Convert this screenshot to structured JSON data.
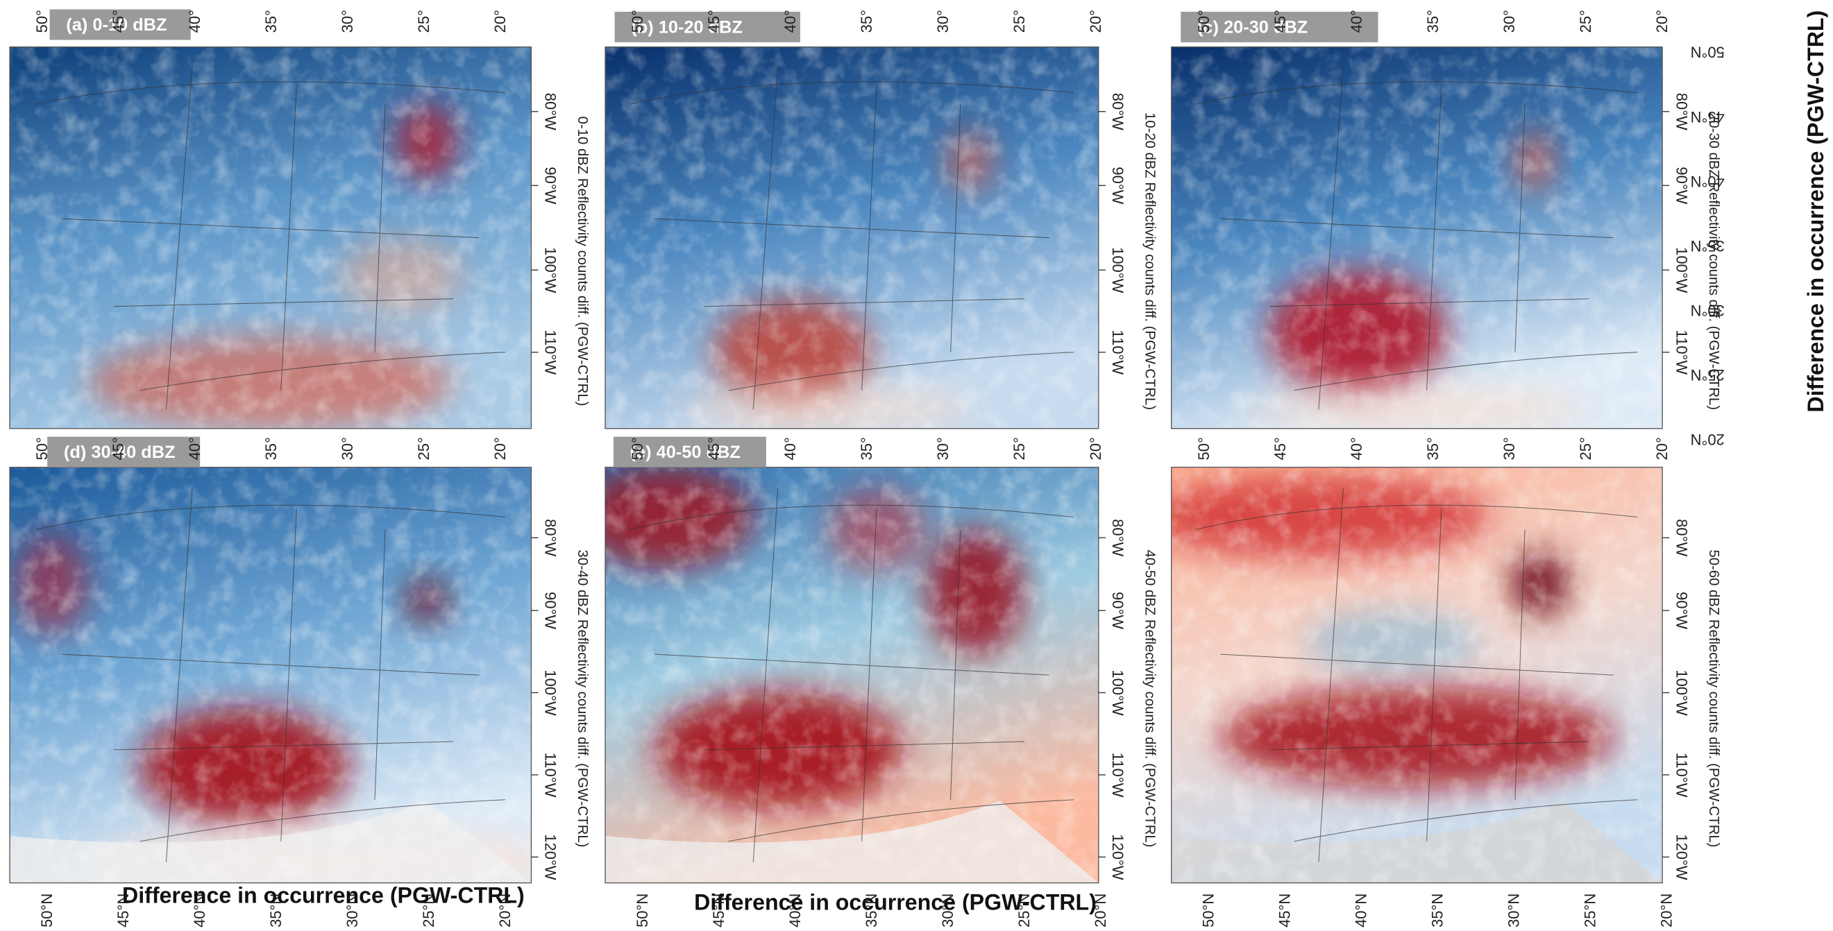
{
  "panels": [
    {
      "label": "(a) 0-10 dBZ",
      "axis_label": "0-10 dBZ Reflectivity counts diff. (PGW-CTRL)"
    },
    {
      "label": "(b) 10-20 dBZ",
      "axis_label": "10-20 dBZ Reflectivity counts diff. (PGW-CTRL)"
    },
    {
      "label": "(c) 20-30 dBZ",
      "axis_label": "20-30 dBZ Reflectivity counts diff. (PGW-CTRL)"
    },
    {
      "label": "(d) 30-40 dBZ",
      "axis_label": "30-40 dBZ Reflectivity counts diff. (PGW-CTRL)"
    },
    {
      "label": "(e) 40-50 dBZ",
      "axis_label": "40-50 dBZ Reflectivity counts diff. (PGW-CTRL)"
    },
    {
      "axis_label": "50-60 dBZ Reflectivity counts diff. (PGW-CTRL)"
    }
  ],
  "lat_ticks": [
    "50°",
    "45°",
    "40°",
    "35°",
    "30°",
    "25°",
    "20°"
  ],
  "lat_ticks_n": [
    "50°N",
    "45°N",
    "40°N",
    "35°N",
    "30°N",
    "25°N",
    "20°N"
  ],
  "lon_ticks": [
    "80°W",
    "90°W",
    "100°W",
    "110°W",
    "120°W"
  ],
  "colorbar_title": "Difference in occurrence (PGW-CTRL)"
}
